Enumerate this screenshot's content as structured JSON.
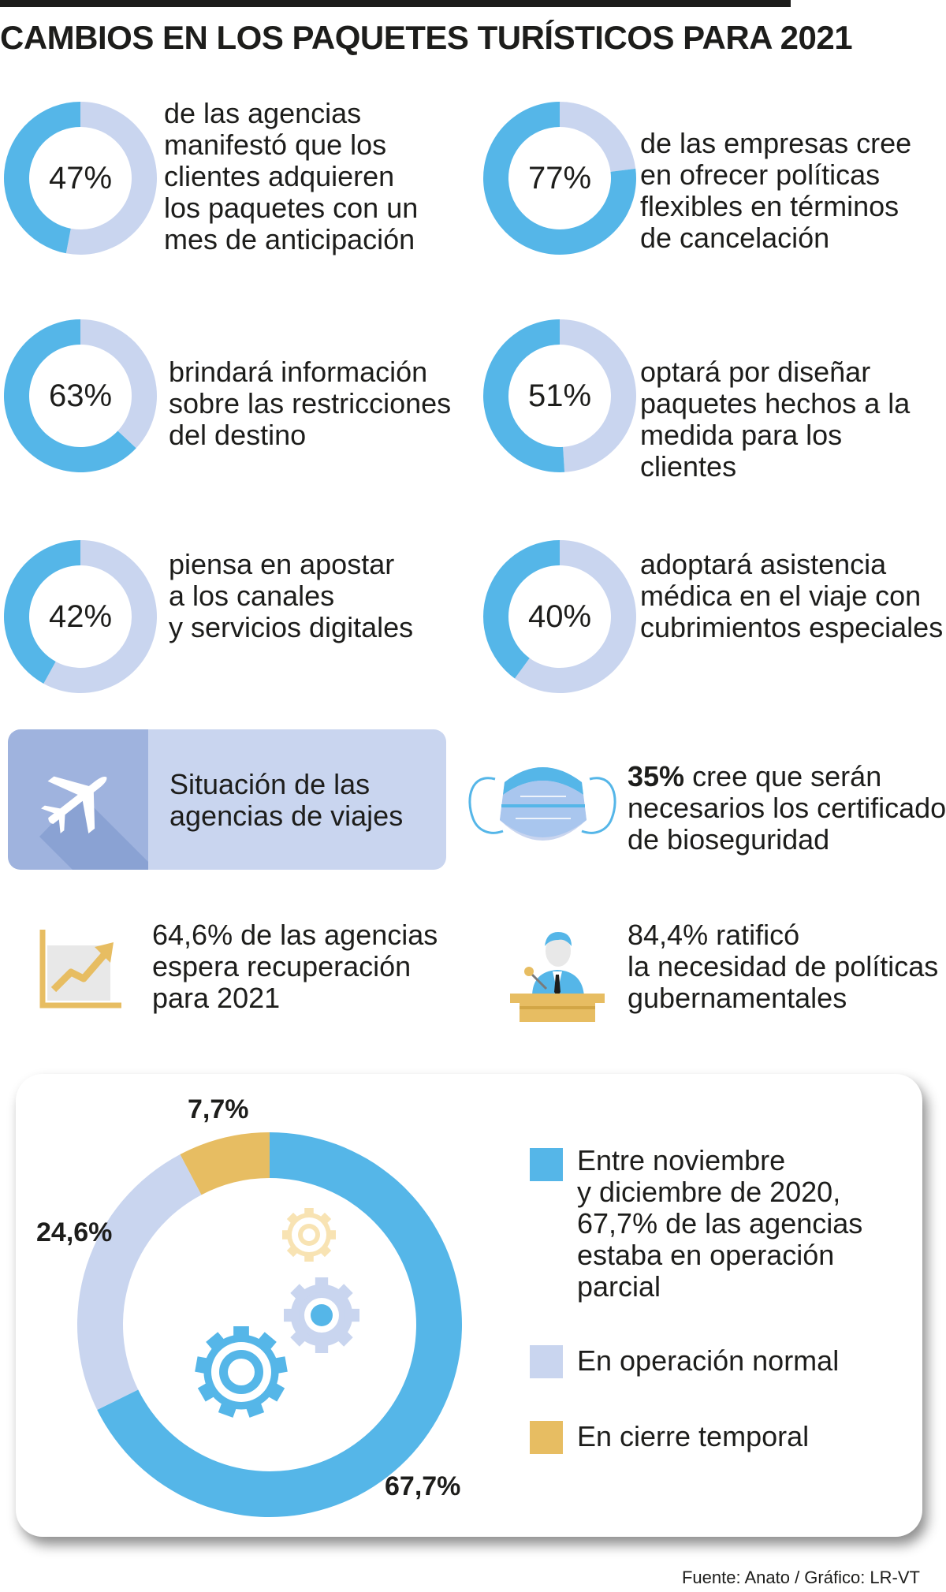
{
  "title": "CAMBIOS EN LOS PAQUETES TURÍSTICOS PARA 2021",
  "colors": {
    "blue": "#55b6e8",
    "light": "#c9d5ef",
    "gold": "#e7bd62",
    "plane_box": "#9fb3de"
  },
  "chart_data": [
    {
      "type": "pie",
      "variant": "donut",
      "value": 47,
      "label": "47%",
      "text": "de las agencias\nmanifestó que los\nclientes adquieren\nlos paquetes con un\nmes de anticipación"
    },
    {
      "type": "pie",
      "variant": "donut",
      "value": 77,
      "label": "77%",
      "text": "de las empresas cree\nen ofrecer políticas\nflexibles en términos\nde cancelación"
    },
    {
      "type": "pie",
      "variant": "donut",
      "value": 63,
      "label": "63%",
      "text": "brindará información\nsobre las restricciones\ndel destino"
    },
    {
      "type": "pie",
      "variant": "donut",
      "value": 51,
      "label": "51%",
      "text": "optará por diseñar\npaquetes hechos a la\nmedida para los clientes"
    },
    {
      "type": "pie",
      "variant": "donut",
      "value": 42,
      "label": "42%",
      "text": "piensa en apostar\na los canales\ny servicios digitales"
    },
    {
      "type": "pie",
      "variant": "donut",
      "value": 40,
      "label": "40%",
      "text": "adoptará asistencia\nmédica en el viaje con\ncubrimientos especiales"
    },
    {
      "type": "pie",
      "variant": "donut",
      "title": "Situación de las agencias de viajes",
      "slices": [
        {
          "name": "Entre noviembre\ny diciembre de 2020,\n67,7% de las agencias\nestaba en operación\nparcial",
          "value": 67.7,
          "label": "67,7%",
          "color": "#55b6e8"
        },
        {
          "name": "En operación normal",
          "value": 24.6,
          "label": "24,6%",
          "color": "#c9d5ef"
        },
        {
          "name": "En cierre temporal",
          "value": 7.7,
          "label": "7,7%",
          "color": "#e7bd62"
        }
      ]
    }
  ],
  "banner": {
    "label": "Situación de las\nagencias de viajes"
  },
  "mask_stat": {
    "pct": "35%",
    "line1": " cree que serán",
    "line2": "necesarios los certificados",
    "line3": "de bioseguridad"
  },
  "growth_stat": {
    "line1": "64,6% de las agencias",
    "line2": "espera recuperación",
    "line3": "para 2021"
  },
  "gov_stat": {
    "line1": "84,4% ratificó",
    "line2": "la necesidad de políticas",
    "line3": "gubernamentales"
  },
  "source": "Fuente: Anato / Gráfico: LR-VT"
}
